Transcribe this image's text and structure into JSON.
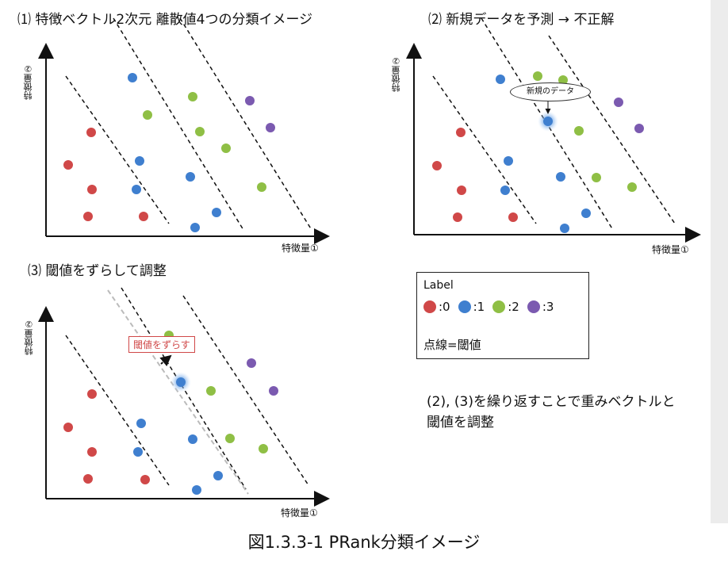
{
  "panels": [
    {
      "id": "p1",
      "title": "⑴ 特徴ベクトル2次元 離散値4つの分類イメージ",
      "ylabel": "特徴量②",
      "xlabel": "特徴量①"
    },
    {
      "id": "p2",
      "title": "⑵ 新規データを予測 → 不正解",
      "ylabel": "特徴量②",
      "xlabel": "特徴量①",
      "callout": "新規のデータ"
    },
    {
      "id": "p3",
      "title": "⑶ 閾値をずらして調整",
      "ylabel": "特徴量②",
      "xlabel": "特徴量①",
      "shift_label": "閾値をずらす"
    }
  ],
  "legend": {
    "title": "Label",
    "items": [
      {
        "label": ":0",
        "color": "#d04848"
      },
      {
        "label": ":1",
        "color": "#3f7fcf"
      },
      {
        "label": ":2",
        "color": "#8fbf45"
      },
      {
        "label": ":3",
        "color": "#7b5ab0"
      }
    ],
    "note": "点線=閾値"
  },
  "note": "(2), (3)を繰り返すことで重みベクトルと閾値を調整",
  "caption": "図1.3.3-1 PRank分類イメージ",
  "colors": {
    "c0": "#d04848",
    "c1": "#3f7fcf",
    "c2": "#8fbf45",
    "c3": "#7b5ab0",
    "axis": "#111111",
    "grayline": "#bbbbbb"
  }
}
